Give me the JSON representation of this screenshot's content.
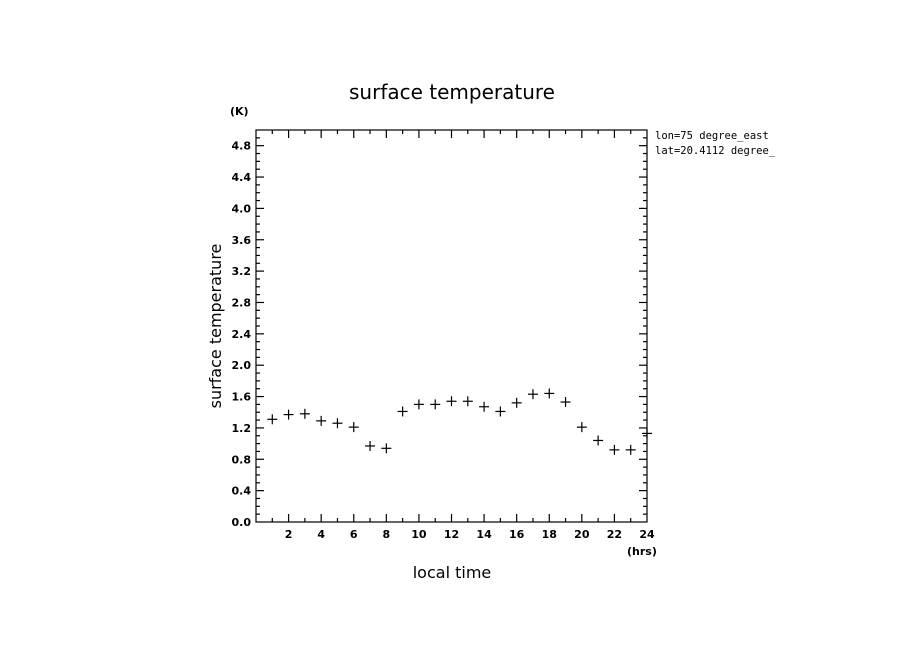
{
  "chart_data": {
    "type": "scatter",
    "title": "surface temperature",
    "xlabel": "local time",
    "ylabel": "surface temperature",
    "x_unit": "(hrs)",
    "y_unit": "(K)",
    "xlim": [
      0,
      24
    ],
    "ylim": [
      0.0,
      5.0
    ],
    "x_ticks": [
      2,
      4,
      6,
      8,
      10,
      12,
      14,
      16,
      18,
      20,
      22,
      24
    ],
    "x_tick_labels": [
      "2",
      "4",
      "6",
      "8",
      "10",
      "12",
      "14",
      "16",
      "18",
      "20",
      "22",
      "24"
    ],
    "y_ticks": [
      0.0,
      0.4,
      0.8,
      1.2,
      1.6,
      2.0,
      2.4,
      2.8,
      3.2,
      3.6,
      4.0,
      4.4,
      4.8
    ],
    "y_tick_labels": [
      "0.0",
      "0.4",
      "0.8",
      "1.2",
      "1.6",
      "2.0",
      "2.4",
      "2.8",
      "3.2",
      "3.6",
      "4.0",
      "4.4",
      "4.8"
    ],
    "grid": false,
    "marker": "+",
    "annotations": [
      "lon=75 degree_east",
      "lat=20.4112 degree_"
    ],
    "x": [
      1,
      2,
      3,
      4,
      5,
      6,
      7,
      8,
      9,
      10,
      11,
      12,
      13,
      14,
      15,
      16,
      17,
      18,
      19,
      20,
      21,
      22,
      23,
      24
    ],
    "y": [
      1.31,
      1.37,
      1.38,
      1.29,
      1.26,
      1.21,
      0.97,
      0.94,
      1.41,
      1.5,
      1.5,
      1.54,
      1.54,
      1.47,
      1.41,
      1.52,
      1.63,
      1.64,
      1.53,
      1.21,
      1.04,
      0.92,
      0.92,
      1.13
    ]
  }
}
